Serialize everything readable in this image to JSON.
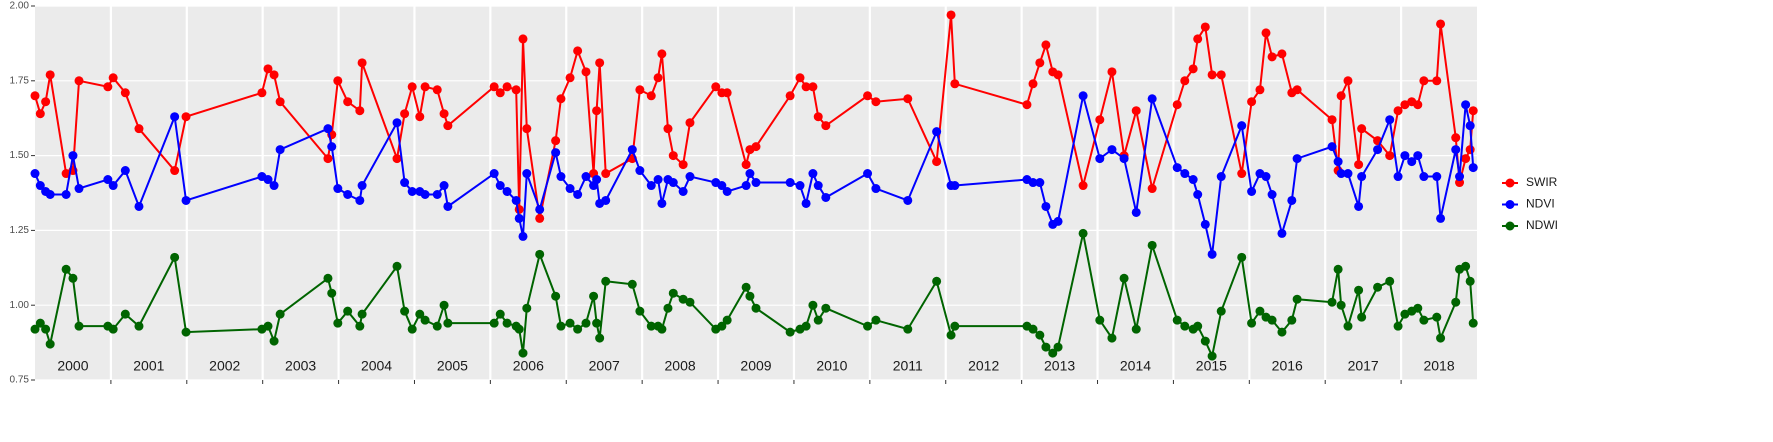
{
  "chart_data": {
    "type": "line",
    "x": [
      2000.0,
      2000.07,
      2000.14,
      2000.2,
      2000.41,
      2000.5,
      2000.58,
      2000.96,
      2001.03,
      2001.19,
      2001.37,
      2001.84,
      2001.99,
      2002.99,
      2003.07,
      2003.15,
      2003.23,
      2003.86,
      2003.91,
      2003.99,
      2004.12,
      2004.28,
      2004.31,
      2004.77,
      2004.87,
      2004.97,
      2005.07,
      2005.14,
      2005.3,
      2005.39,
      2005.44,
      2006.05,
      2006.13,
      2006.22,
      2006.34,
      2006.38,
      2006.43,
      2006.48,
      2006.65,
      2006.86,
      2006.93,
      2007.05,
      2007.15,
      2007.26,
      2007.36,
      2007.4,
      2007.44,
      2007.52,
      2007.87,
      2007.97,
      2008.12,
      2008.21,
      2008.26,
      2008.34,
      2008.41,
      2008.54,
      2008.63,
      2008.97,
      2009.05,
      2009.12,
      2009.37,
      2009.42,
      2009.5,
      2009.95,
      2010.08,
      2010.16,
      2010.25,
      2010.32,
      2010.42,
      2010.97,
      2011.08,
      2011.5,
      2011.88,
      2012.07,
      2012.12,
      2013.07,
      2013.15,
      2013.24,
      2013.32,
      2013.41,
      2013.48,
      2013.81,
      2014.03,
      2014.19,
      2014.35,
      2014.51,
      2014.72,
      2015.05,
      2015.15,
      2015.26,
      2015.32,
      2015.42,
      2015.51,
      2015.63,
      2015.9,
      2016.03,
      2016.14,
      2016.22,
      2016.3,
      2016.43,
      2016.56,
      2016.63,
      2017.09,
      2017.17,
      2017.21,
      2017.3,
      2017.44,
      2017.48,
      2017.69,
      2017.85,
      2017.96,
      2018.05,
      2018.14,
      2018.22,
      2018.3,
      2018.47,
      2018.52,
      2018.72,
      2018.77,
      2018.85,
      2018.91,
      2018.95
    ],
    "series": [
      {
        "name": "SWIR",
        "color": "#ff0000",
        "values": [
          1.7,
          1.64,
          1.68,
          1.77,
          1.44,
          1.45,
          1.75,
          1.73,
          1.76,
          1.71,
          1.59,
          1.45,
          1.63,
          1.71,
          1.79,
          1.77,
          1.68,
          1.49,
          1.57,
          1.75,
          1.68,
          1.65,
          1.81,
          1.49,
          1.64,
          1.73,
          1.63,
          1.73,
          1.72,
          1.64,
          1.6,
          1.73,
          1.71,
          1.73,
          1.72,
          1.32,
          1.89,
          1.59,
          1.29,
          1.55,
          1.69,
          1.76,
          1.85,
          1.78,
          1.44,
          1.65,
          1.81,
          1.44,
          1.49,
          1.72,
          1.7,
          1.76,
          1.84,
          1.59,
          1.5,
          1.47,
          1.61,
          1.73,
          1.71,
          1.71,
          1.47,
          1.52,
          1.53,
          1.7,
          1.76,
          1.73,
          1.73,
          1.63,
          1.6,
          1.7,
          1.68,
          1.69,
          1.48,
          1.97,
          1.74,
          1.67,
          1.74,
          1.81,
          1.87,
          1.78,
          1.77,
          1.4,
          1.62,
          1.78,
          1.5,
          1.65,
          1.39,
          1.67,
          1.75,
          1.79,
          1.89,
          1.93,
          1.77,
          1.77,
          1.44,
          1.68,
          1.72,
          1.91,
          1.83,
          1.84,
          1.71,
          1.72,
          1.62,
          1.45,
          1.7,
          1.75,
          1.47,
          1.59,
          1.55,
          1.5,
          1.65,
          1.67,
          1.68,
          1.67,
          1.75,
          1.75,
          1.94,
          1.56,
          1.41,
          1.49,
          1.52,
          1.65
        ]
      },
      {
        "name": "NDVI",
        "color": "#0000ff",
        "values": [
          1.44,
          1.4,
          1.38,
          1.37,
          1.37,
          1.5,
          1.39,
          1.42,
          1.4,
          1.45,
          1.33,
          1.63,
          1.35,
          1.43,
          1.42,
          1.4,
          1.52,
          1.59,
          1.53,
          1.39,
          1.37,
          1.35,
          1.4,
          1.61,
          1.41,
          1.38,
          1.38,
          1.37,
          1.37,
          1.4,
          1.33,
          1.44,
          1.4,
          1.38,
          1.35,
          1.29,
          1.23,
          1.44,
          1.32,
          1.51,
          1.43,
          1.39,
          1.37,
          1.43,
          1.4,
          1.42,
          1.34,
          1.35,
          1.52,
          1.45,
          1.4,
          1.42,
          1.34,
          1.42,
          1.41,
          1.38,
          1.43,
          1.41,
          1.4,
          1.38,
          1.4,
          1.44,
          1.41,
          1.41,
          1.4,
          1.34,
          1.44,
          1.4,
          1.36,
          1.44,
          1.39,
          1.35,
          1.58,
          1.4,
          1.4,
          1.42,
          1.41,
          1.41,
          1.33,
          1.27,
          1.28,
          1.7,
          1.49,
          1.52,
          1.49,
          1.31,
          1.69,
          1.46,
          1.44,
          1.42,
          1.37,
          1.27,
          1.17,
          1.43,
          1.6,
          1.38,
          1.44,
          1.43,
          1.37,
          1.24,
          1.35,
          1.49,
          1.53,
          1.48,
          1.44,
          1.44,
          1.33,
          1.43,
          1.52,
          1.62,
          1.43,
          1.5,
          1.48,
          1.5,
          1.43,
          1.43,
          1.29,
          1.52,
          1.43,
          1.67,
          1.6,
          1.46
        ]
      },
      {
        "name": "NDWI",
        "color": "#006400",
        "values": [
          0.92,
          0.94,
          0.92,
          0.87,
          1.12,
          1.09,
          0.93,
          0.93,
          0.92,
          0.97,
          0.93,
          1.16,
          0.91,
          0.92,
          0.93,
          0.88,
          0.97,
          1.09,
          1.04,
          0.94,
          0.98,
          0.93,
          0.97,
          1.13,
          0.98,
          0.92,
          0.97,
          0.95,
          0.93,
          1.0,
          0.94,
          0.94,
          0.97,
          0.94,
          0.93,
          0.92,
          0.84,
          0.99,
          1.17,
          1.03,
          0.93,
          0.94,
          0.92,
          0.94,
          1.03,
          0.94,
          0.89,
          1.08,
          1.07,
          0.98,
          0.93,
          0.93,
          0.92,
          0.99,
          1.04,
          1.02,
          1.01,
          0.92,
          0.93,
          0.95,
          1.06,
          1.03,
          0.99,
          0.91,
          0.92,
          0.93,
          1.0,
          0.95,
          0.99,
          0.93,
          0.95,
          0.92,
          1.08,
          0.9,
          0.93,
          0.93,
          0.92,
          0.9,
          0.86,
          0.84,
          0.86,
          1.24,
          0.95,
          0.89,
          1.09,
          0.92,
          1.2,
          0.95,
          0.93,
          0.92,
          0.93,
          0.88,
          0.83,
          0.98,
          1.16,
          0.94,
          0.98,
          0.96,
          0.95,
          0.91,
          0.95,
          1.02,
          1.01,
          1.12,
          1.0,
          0.93,
          1.05,
          0.96,
          1.06,
          1.08,
          0.93,
          0.97,
          0.98,
          0.99,
          0.95,
          0.96,
          0.89,
          1.01,
          1.12,
          1.13,
          1.08,
          0.94
        ]
      }
    ],
    "xlim": [
      2000,
      2019
    ],
    "xticks": [
      {
        "value": 2000.5,
        "label": "2000"
      },
      {
        "value": 2001.5,
        "label": "2001"
      },
      {
        "value": 2002.5,
        "label": "2002"
      },
      {
        "value": 2003.5,
        "label": "2003"
      },
      {
        "value": 2004.5,
        "label": "2004"
      },
      {
        "value": 2005.5,
        "label": "2005"
      },
      {
        "value": 2006.5,
        "label": "2006"
      },
      {
        "value": 2007.5,
        "label": "2007"
      },
      {
        "value": 2008.5,
        "label": "2008"
      },
      {
        "value": 2009.5,
        "label": "2009"
      },
      {
        "value": 2010.5,
        "label": "2010"
      },
      {
        "value": 2011.5,
        "label": "2011"
      },
      {
        "value": 2012.5,
        "label": "2012"
      },
      {
        "value": 2013.5,
        "label": "2013"
      },
      {
        "value": 2014.5,
        "label": "2014"
      },
      {
        "value": 2015.5,
        "label": "2015"
      },
      {
        "value": 2016.5,
        "label": "2016"
      },
      {
        "value": 2017.5,
        "label": "2017"
      },
      {
        "value": 2018.5,
        "label": "2018"
      }
    ],
    "xgrid": [
      2001,
      2002,
      2003,
      2004,
      2005,
      2006,
      2007,
      2008,
      2009,
      2010,
      2011,
      2012,
      2013,
      2014,
      2015,
      2016,
      2017,
      2018
    ],
    "ylim": [
      0.75,
      2.0
    ],
    "yticks": [
      {
        "value": 0.75,
        "label": "0.75"
      },
      {
        "value": 1.0,
        "label": "1.00"
      },
      {
        "value": 1.25,
        "label": "1.25"
      },
      {
        "value": 1.5,
        "label": "1.50"
      },
      {
        "value": 1.75,
        "label": "1.75"
      },
      {
        "value": 2.0,
        "label": "2.00"
      }
    ],
    "grid": true,
    "legend": "right"
  }
}
